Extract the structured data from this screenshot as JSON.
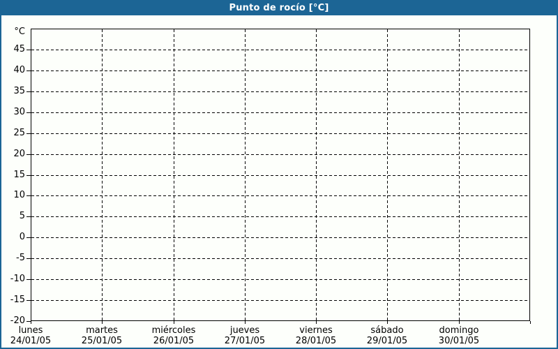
{
  "title_bar": {
    "title": "Punto de rocío [°C]"
  },
  "colors": {
    "titlebar_bg": "#1c6595",
    "titlebar_text": "#ffffff",
    "frame_border": "#1c6595",
    "page_bg": "#fdfffb",
    "grid": "#000000"
  },
  "chart_data": {
    "type": "line",
    "title": "Punto de rocío [°C]",
    "y_unit_label": "°C",
    "ylim": [
      -20,
      50
    ],
    "y_tick_step": 5,
    "y_ticks": [
      45,
      40,
      35,
      30,
      25,
      20,
      15,
      10,
      5,
      0,
      -5,
      -10,
      -15,
      -20
    ],
    "x_categories": [
      {
        "day": "lunes",
        "date": "24/01/05"
      },
      {
        "day": "martes",
        "date": "25/01/05"
      },
      {
        "day": "miércoles",
        "date": "26/01/05"
      },
      {
        "day": "jueves",
        "date": "27/01/05"
      },
      {
        "day": "viernes",
        "date": "28/01/05"
      },
      {
        "day": "sábado",
        "date": "29/01/05"
      },
      {
        "day": "domingo",
        "date": "30/01/05"
      }
    ],
    "series": [],
    "grid": "dashed",
    "legend": "none"
  }
}
